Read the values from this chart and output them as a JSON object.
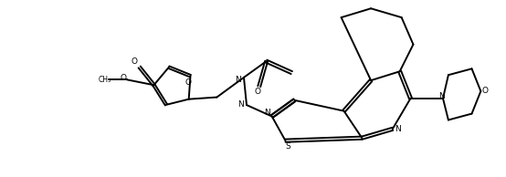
{
  "bg_color": "#ffffff",
  "line_color": "#000000",
  "lw": 1.4,
  "fig_width": 5.54,
  "fig_height": 1.94,
  "dpi": 100,
  "xlim": [
    0,
    5.54
  ],
  "ylim": [
    0,
    1.94
  ]
}
